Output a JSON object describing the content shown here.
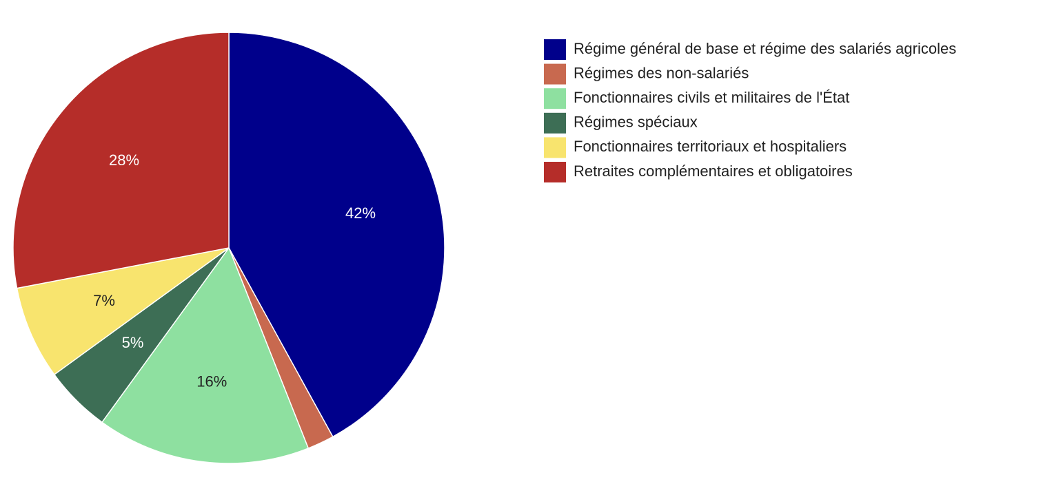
{
  "chart_data": {
    "type": "pie",
    "categories": [
      "Régime général de base et régime des salariés agricoles",
      "Régimes des non-salariés",
      "Fonctionnaires civils et militaires de l'État",
      "Régimes spéciaux",
      "Fonctionnaires territoriaux et hospitaliers",
      "Retraites complémentaires et obligatoires"
    ],
    "values": [
      42,
      2,
      16,
      5,
      7,
      28
    ],
    "value_labels": [
      "42%",
      null,
      "16%",
      "5%",
      "7%",
      "28%"
    ],
    "colors": [
      "#00008b",
      "#c8694f",
      "#8ee0a0",
      "#3d6e55",
      "#f8e46e",
      "#b52d29"
    ],
    "legend": "right"
  }
}
